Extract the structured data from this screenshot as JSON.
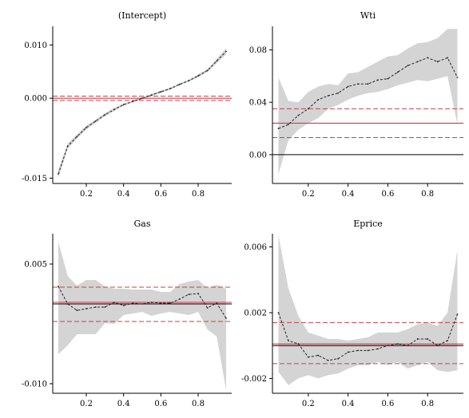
{
  "chart_data": [
    {
      "type": "line",
      "title": "(Intercept)",
      "xlim": [
        0.02,
        0.98
      ],
      "ylim": [
        -0.016,
        0.0135
      ],
      "xticks": [
        0.2,
        0.4,
        0.6,
        0.8
      ],
      "xtick_labels": [
        "0.2",
        "0.4",
        "0.6",
        "0.8"
      ],
      "yticks": [
        -0.015,
        0.0,
        0.01
      ],
      "ytick_labels": [
        "-0.015",
        "0.000",
        "0.010"
      ],
      "x": [
        0.05,
        0.1,
        0.15,
        0.2,
        0.25,
        0.3,
        0.35,
        0.4,
        0.45,
        0.5,
        0.55,
        0.6,
        0.65,
        0.7,
        0.75,
        0.8,
        0.85,
        0.9,
        0.95
      ],
      "estimate": [
        -0.0142,
        -0.009,
        -0.0072,
        -0.0055,
        -0.0043,
        -0.0031,
        -0.0021,
        -0.0012,
        -0.0006,
        0.0,
        0.0006,
        0.0012,
        0.0018,
        0.0026,
        0.0033,
        0.0042,
        0.0052,
        0.007,
        0.0088
      ],
      "band_lower": [
        -0.015,
        -0.0095,
        -0.0076,
        -0.0059,
        -0.0046,
        -0.0034,
        -0.0024,
        -0.0014,
        -0.0008,
        -0.0002,
        0.0004,
        0.001,
        0.0016,
        0.0024,
        0.0031,
        0.0039,
        0.0049,
        0.0066,
        0.0082
      ],
      "band_upper": [
        -0.0134,
        -0.0085,
        -0.0068,
        -0.0051,
        -0.004,
        -0.0028,
        -0.0018,
        -0.001,
        -0.0004,
        0.0002,
        0.0008,
        0.0014,
        0.002,
        0.0028,
        0.0035,
        0.0045,
        0.0055,
        0.0074,
        0.0094
      ],
      "ols_estimate": 0.0,
      "ols_lower": -0.0004,
      "ols_upper": 0.0004,
      "zero_line": false
    },
    {
      "type": "line",
      "title": "Wti",
      "xlim": [
        0.02,
        0.98
      ],
      "ylim": [
        -0.022,
        0.098
      ],
      "xticks": [
        0.2,
        0.4,
        0.6,
        0.8
      ],
      "xtick_labels": [
        "0.2",
        "0.4",
        "0.6",
        "0.8"
      ],
      "yticks": [
        0.0,
        0.04,
        0.08
      ],
      "ytick_labels": [
        "0.00",
        "0.04",
        "0.08"
      ],
      "x": [
        0.05,
        0.1,
        0.15,
        0.2,
        0.25,
        0.3,
        0.35,
        0.4,
        0.45,
        0.5,
        0.55,
        0.6,
        0.65,
        0.7,
        0.75,
        0.8,
        0.85,
        0.9,
        0.95
      ],
      "estimate": [
        0.02,
        0.023,
        0.03,
        0.035,
        0.042,
        0.045,
        0.047,
        0.052,
        0.054,
        0.054,
        0.057,
        0.058,
        0.063,
        0.068,
        0.071,
        0.074,
        0.071,
        0.074,
        0.059
      ],
      "band_lower": [
        -0.015,
        0.011,
        0.019,
        0.024,
        0.028,
        0.035,
        0.038,
        0.042,
        0.045,
        0.047,
        0.048,
        0.05,
        0.053,
        0.055,
        0.057,
        0.056,
        0.058,
        0.06,
        0.023
      ],
      "band_upper": [
        0.059,
        0.041,
        0.04,
        0.048,
        0.052,
        0.054,
        0.053,
        0.062,
        0.063,
        0.067,
        0.071,
        0.075,
        0.076,
        0.081,
        0.085,
        0.086,
        0.089,
        0.096,
        0.096
      ],
      "ols_estimate": 0.024,
      "ols_lower": 0.013,
      "ols_upper": 0.035,
      "zero_line": true
    },
    {
      "type": "line",
      "title": "Gas",
      "xlim": [
        0.02,
        0.98
      ],
      "ylim": [
        -0.0112,
        0.0088
      ],
      "xticks": [
        0.2,
        0.4,
        0.6,
        0.8
      ],
      "xtick_labels": [
        "0.2",
        "0.4",
        "0.6",
        "0.8"
      ],
      "yticks": [
        -0.01,
        0.005
      ],
      "ytick_labels": [
        "-0.010",
        "0.005"
      ],
      "x": [
        0.05,
        0.1,
        0.15,
        0.2,
        0.25,
        0.3,
        0.35,
        0.4,
        0.45,
        0.5,
        0.55,
        0.6,
        0.65,
        0.7,
        0.75,
        0.8,
        0.85,
        0.9,
        0.95
      ],
      "estimate": [
        0.0022,
        0.0,
        -0.0008,
        -0.0006,
        -0.0004,
        -0.0004,
        0.0002,
        -0.0002,
        0.0001,
        0.0,
        0.0002,
        0.0001,
        0.0001,
        0.0006,
        0.0012,
        0.0013,
        -0.0005,
        0.0001,
        -0.0018
      ],
      "band_lower": [
        -0.0063,
        -0.0052,
        -0.0038,
        -0.0038,
        -0.0038,
        -0.0024,
        -0.0025,
        -0.0014,
        -0.0012,
        -0.001,
        -0.0015,
        -0.0012,
        -0.001,
        -0.0012,
        -0.0014,
        -0.001,
        -0.0032,
        -0.0041,
        -0.0108
      ],
      "band_upper": [
        0.0078,
        0.0035,
        0.0023,
        0.003,
        0.003,
        0.0022,
        0.0019,
        0.0019,
        0.0018,
        0.0018,
        0.0018,
        0.0015,
        0.0015,
        0.0025,
        0.0028,
        0.003,
        0.002,
        0.0024,
        0.0019
      ],
      "ols_estimate": 0.0002,
      "ols_lower": -0.0022,
      "ols_upper": 0.0021,
      "zero_line": true
    },
    {
      "type": "line",
      "title": "Eprice",
      "xlim": [
        0.02,
        0.98
      ],
      "ylim": [
        -0.0029,
        0.0068
      ],
      "xticks": [
        0.2,
        0.4,
        0.6,
        0.8
      ],
      "xtick_labels": [
        "0.2",
        "0.4",
        "0.6",
        "0.8"
      ],
      "yticks": [
        -0.002,
        0.002,
        0.006
      ],
      "ytick_labels": [
        "-0.002",
        "0.002",
        "0.006"
      ],
      "x": [
        0.05,
        0.1,
        0.15,
        0.2,
        0.25,
        0.3,
        0.35,
        0.4,
        0.45,
        0.5,
        0.55,
        0.6,
        0.65,
        0.7,
        0.75,
        0.8,
        0.85,
        0.9,
        0.95
      ],
      "estimate": [
        0.002,
        0.0003,
        0.0001,
        -0.0007,
        -0.0006,
        -0.0009,
        -0.0008,
        -0.0004,
        -0.0003,
        -0.0003,
        -0.0002,
        0.0,
        0.0001,
        0.0,
        0.0004,
        0.0004,
        0.0,
        0.0003,
        0.0019
      ],
      "band_lower": [
        -0.0016,
        -0.0024,
        -0.002,
        -0.0018,
        -0.002,
        -0.0018,
        -0.0017,
        -0.0014,
        -0.0012,
        -0.0012,
        -0.001,
        -0.0012,
        -0.001,
        -0.0014,
        -0.0012,
        -0.001,
        -0.0015,
        -0.0016,
        -0.0015
      ],
      "band_upper": [
        0.0067,
        0.0035,
        0.0018,
        0.0008,
        0.0006,
        0.0004,
        0.0004,
        0.0003,
        0.0004,
        0.0005,
        0.0008,
        0.0008,
        0.0008,
        0.001,
        0.0013,
        0.0014,
        0.0012,
        0.002,
        0.0058
      ],
      "ols_estimate": 0.0001,
      "ols_lower": -0.0011,
      "ols_upper": 0.0014,
      "zero_line": true
    }
  ],
  "colors": {
    "band": "#d4d4d4",
    "estimate": "#222222",
    "ols": "#c8404a",
    "axis": "#000000"
  }
}
